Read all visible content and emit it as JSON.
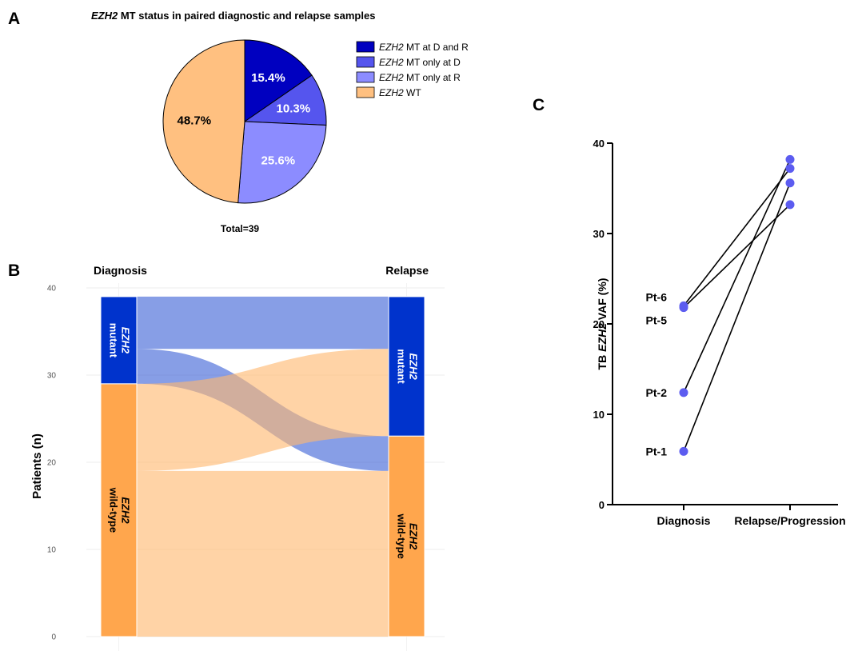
{
  "panel_labels": {
    "a": "A",
    "b": "B",
    "c": "C"
  },
  "chart_data": [
    {
      "type": "pie",
      "title_italic": "EZH2",
      "title_rest": " MT status in paired diagnostic and relapse samples",
      "total_label": "Total=39",
      "slices": [
        {
          "name_italic": "EZH2",
          "name_rest": " MT at D and R",
          "value": 15.4,
          "label": "15.4%",
          "color": "#0000C0",
          "label_color": "#ffffff"
        },
        {
          "name_italic": "EZH2",
          "name_rest": " MT only at D",
          "value": 10.3,
          "label": "10.3%",
          "color": "#5555EE",
          "label_color": "#ffffff"
        },
        {
          "name_italic": "EZH2",
          "name_rest": " MT only at R",
          "value": 25.6,
          "label": "25.6%",
          "color": "#8C8CFF",
          "label_color": "#ffffff"
        },
        {
          "name_italic": "EZH2",
          "name_rest": " WT",
          "value": 48.7,
          "label": "48.7%",
          "color": "#FFC080",
          "label_color": "#000000"
        }
      ]
    },
    {
      "type": "sankey",
      "left_header": "Diagnosis",
      "right_header": "Relapse",
      "ylabel": "Patients (n)",
      "ylim": [
        0,
        40
      ],
      "yticks": [
        "0",
        "10",
        "20",
        "30",
        "40"
      ],
      "grid": true,
      "stages": [
        {
          "nodes": [
            {
              "key": "mut",
              "value": 10,
              "label_italic": "EZH2",
              "label": "mutant",
              "color": "#0033CC"
            },
            {
              "key": "wt",
              "value": 29,
              "label_italic": "EZH2",
              "label": "wild-type",
              "color": "#FFA64D"
            }
          ]
        },
        {
          "nodes": [
            {
              "key": "mut",
              "value": 16,
              "label_italic": "EZH2",
              "label": "mutant",
              "color": "#0033CC"
            },
            {
              "key": "wt",
              "value": 23,
              "label_italic": "EZH2",
              "label": "wild-type",
              "color": "#FFA64D"
            }
          ]
        }
      ],
      "flows": [
        {
          "from": "mut",
          "to": "mut",
          "value": 6,
          "color": "#3D63D6"
        },
        {
          "from": "mut",
          "to": "wt",
          "value": 4,
          "color": "#3D63D6"
        },
        {
          "from": "wt",
          "to": "mut",
          "value": 10,
          "color": "#FFB870"
        },
        {
          "from": "wt",
          "to": "wt",
          "value": 19,
          "color": "#FFB870"
        }
      ]
    },
    {
      "type": "line",
      "categories": [
        "Diagnosis",
        "Relapse/Progression"
      ],
      "ylabel_pre": "TB ",
      "ylabel_italic": "EZH2",
      "ylabel_post": " VAF (%)",
      "ylim": [
        0,
        40
      ],
      "yticks": [
        "0",
        "10",
        "20",
        "30",
        "40"
      ],
      "color": "#5C5CF0",
      "series": [
        {
          "name": "Pt-6",
          "values": [
            22.0,
            37.2
          ]
        },
        {
          "name": "Pt-5",
          "values": [
            21.8,
            33.2
          ]
        },
        {
          "name": "Pt-2",
          "values": [
            12.4,
            38.2
          ]
        },
        {
          "name": "Pt-1",
          "values": [
            5.9,
            35.6
          ]
        }
      ]
    }
  ]
}
